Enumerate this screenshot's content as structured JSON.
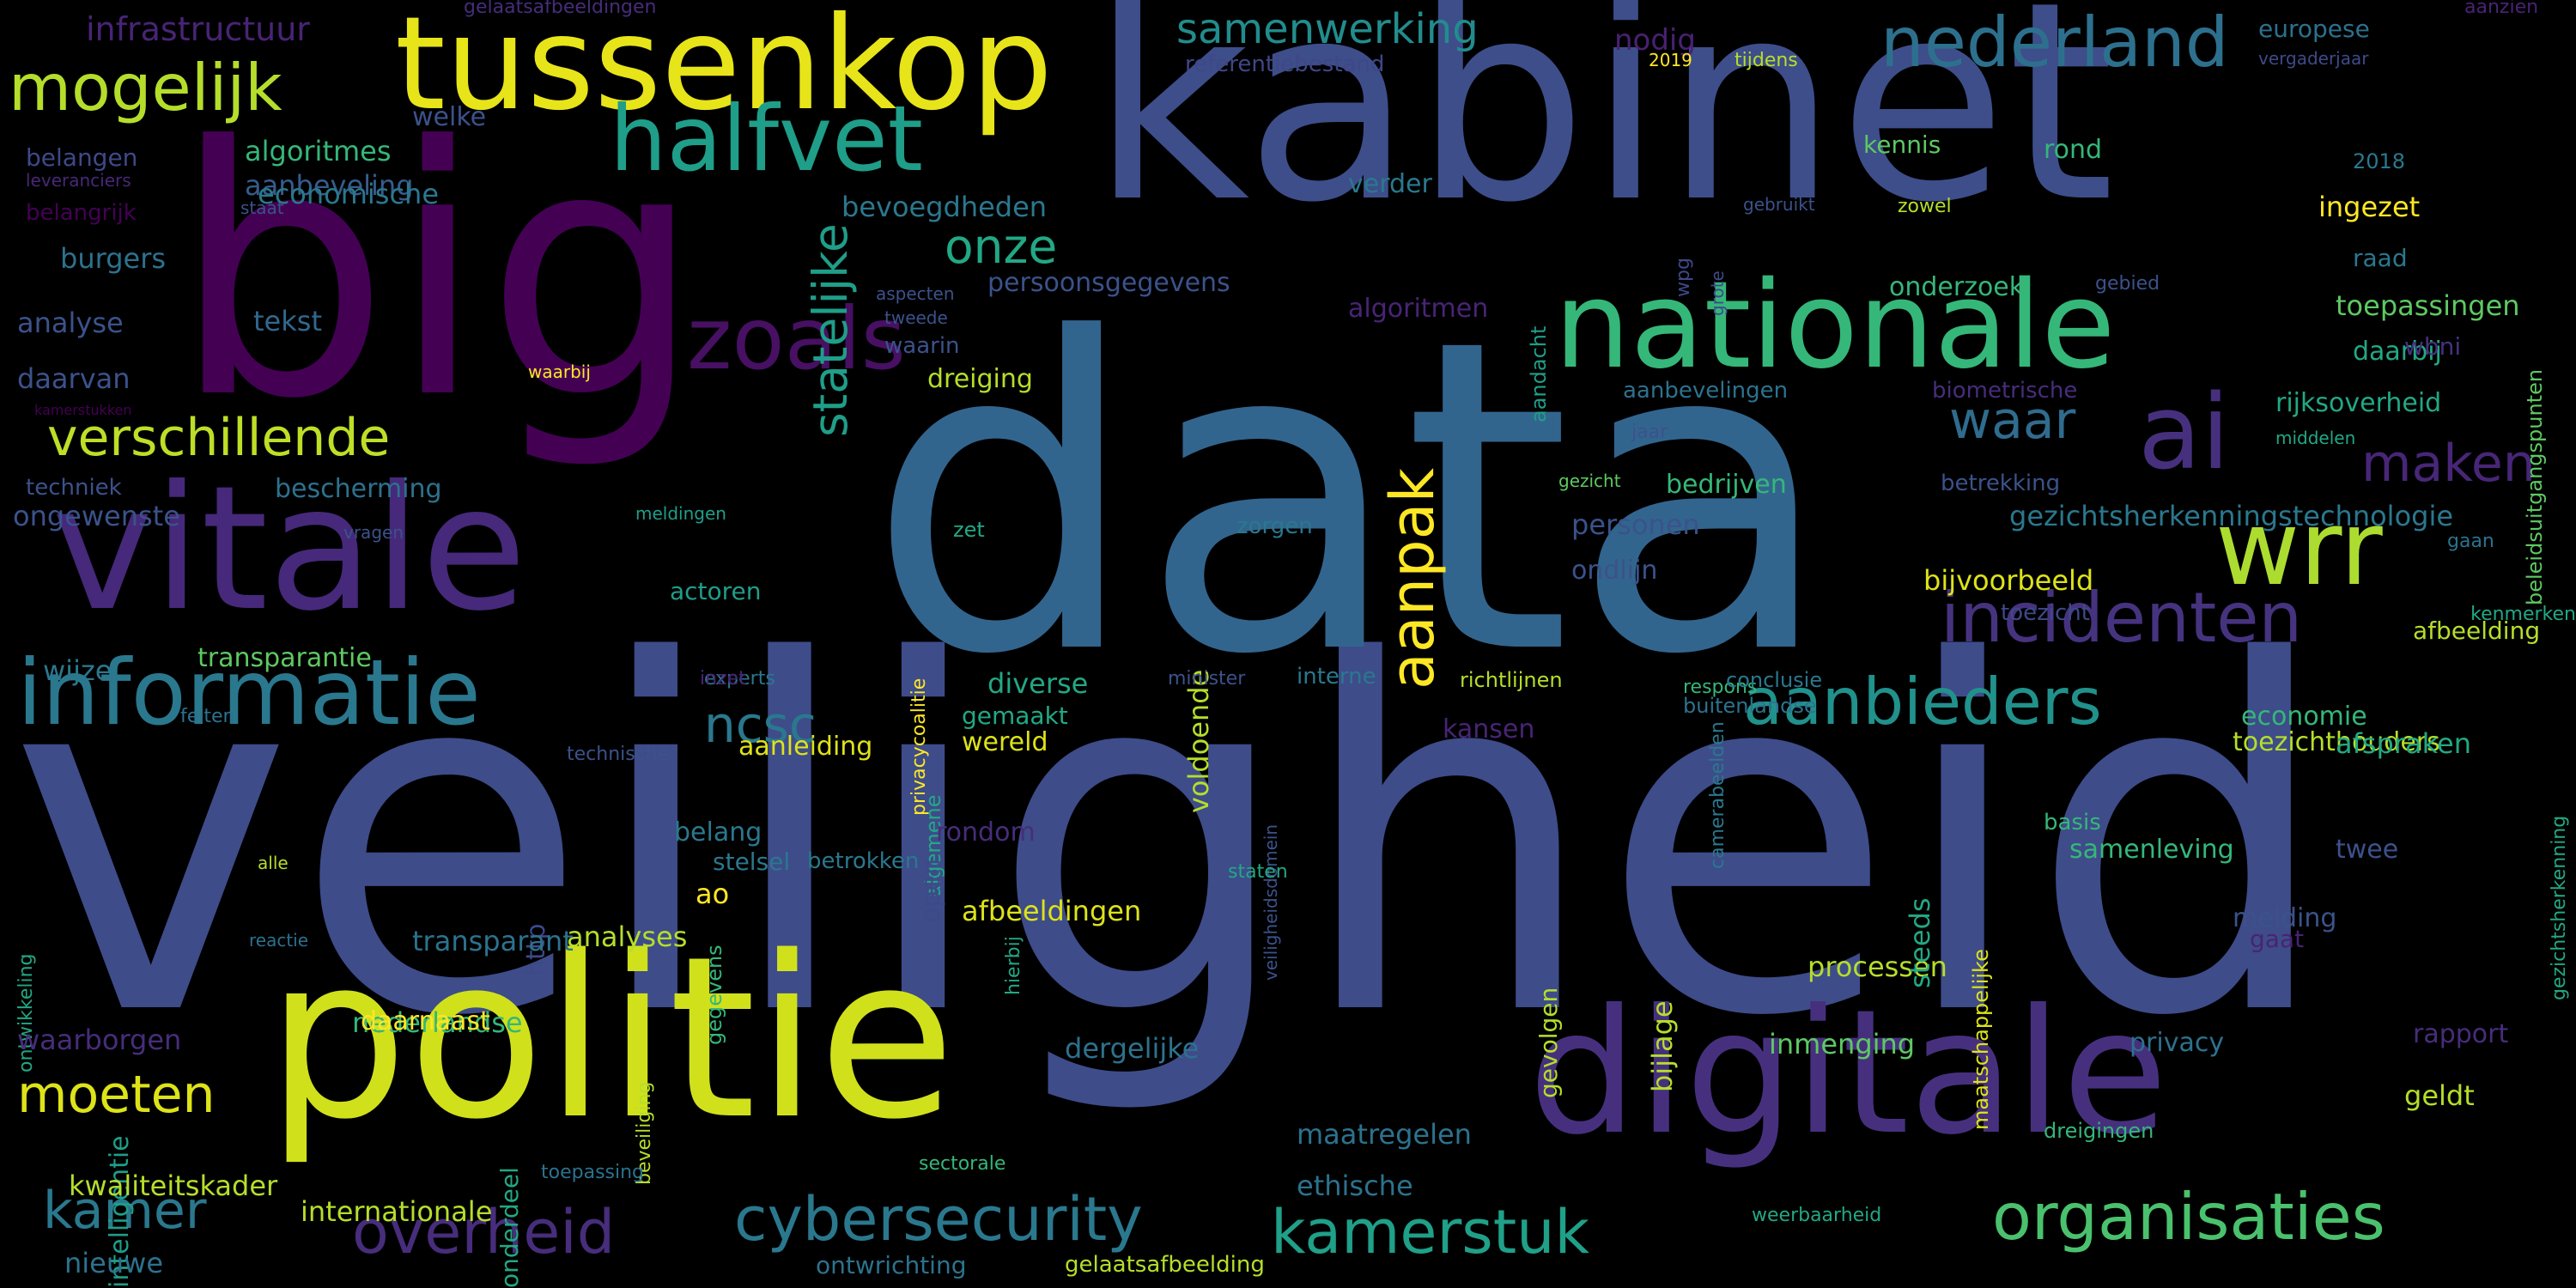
{
  "words": [
    {
      "text": "veiligheid",
      "color": "#3e4c8a",
      "vertical": false
    },
    {
      "text": "data",
      "color": "#32658e",
      "vertical": false
    },
    {
      "text": "kabinet",
      "color": "#3d4e8a",
      "vertical": false
    },
    {
      "text": "big",
      "color": "#440154",
      "vertical": false
    },
    {
      "text": "politie",
      "color": "#d0e11c",
      "vertical": false
    },
    {
      "text": "digitale",
      "color": "#46307e",
      "vertical": false
    },
    {
      "text": "vitale",
      "color": "#46297a",
      "vertical": false
    },
    {
      "text": "tussenkop",
      "color": "#e7e419",
      "vertical": false
    },
    {
      "text": "nationale",
      "color": "#35b779",
      "vertical": false
    },
    {
      "text": "informatie",
      "color": "#2a788e",
      "vertical": false
    },
    {
      "text": "halfvet",
      "color": "#1f9e89",
      "vertical": false
    },
    {
      "text": "wrr",
      "color": "#addc30",
      "vertical": false
    },
    {
      "text": "zoals",
      "color": "#471063",
      "vertical": false
    },
    {
      "text": "ai",
      "color": "#46307e",
      "vertical": false
    },
    {
      "text": "mogelijk",
      "color": "#b5de2b",
      "vertical": false
    },
    {
      "text": "nederland",
      "color": "#2d708e",
      "vertical": false
    },
    {
      "text": "incidenten",
      "color": "#46337f",
      "vertical": false
    },
    {
      "text": "aanbieders",
      "color": "#21918c",
      "vertical": false
    },
    {
      "text": "organisaties",
      "color": "#4ac16d",
      "vertical": false
    },
    {
      "text": "kamerstuk",
      "color": "#1fa088",
      "vertical": false
    },
    {
      "text": "overheid",
      "color": "#472d7b",
      "vertical": false
    },
    {
      "text": "cybersecurity",
      "color": "#2a788e",
      "vertical": false
    },
    {
      "text": "aanpak",
      "color": "#fde725",
      "vertical": true
    },
    {
      "text": "statelijke",
      "color": "#1f9e89",
      "vertical": true
    },
    {
      "text": "verschillende",
      "color": "#bddf26",
      "vertical": false
    },
    {
      "text": "onze",
      "color": "#22a884",
      "vertical": false
    },
    {
      "text": "waar",
      "color": "#2f6c8e",
      "vertical": false
    },
    {
      "text": "maken",
      "color": "#482677",
      "vertical": false
    },
    {
      "text": "ncsc",
      "color": "#2a788e",
      "vertical": false
    },
    {
      "text": "moeten",
      "color": "#dde318",
      "vertical": false
    },
    {
      "text": "kamer",
      "color": "#2a788e",
      "vertical": false
    },
    {
      "text": "samenwerking",
      "color": "#228c8d",
      "vertical": false
    },
    {
      "text": "infrastructuur",
      "color": "#482475",
      "vertical": false
    },
    {
      "text": "gelaatsafbeeldingen",
      "color": "#472c7a",
      "vertical": false
    },
    {
      "text": "referentiebestand",
      "color": "#3f4788",
      "vertical": false
    },
    {
      "text": "nodig",
      "color": "#482173",
      "vertical": false
    },
    {
      "text": "europese",
      "color": "#2c718e",
      "vertical": false
    },
    {
      "text": "vergaderjaar",
      "color": "#3e4a89",
      "vertical": false
    },
    {
      "text": "aanzien",
      "color": "#482374",
      "vertical": false
    },
    {
      "text": "2019",
      "color": "#fde725",
      "vertical": false
    },
    {
      "text": "tijdens",
      "color": "#b8de29",
      "vertical": false
    },
    {
      "text": "welke",
      "color": "#3b528b",
      "vertical": false
    },
    {
      "text": "algoritmes",
      "color": "#35b779",
      "vertical": false
    },
    {
      "text": "aanbeveling",
      "color": "#365c8d",
      "vertical": false
    },
    {
      "text": "belangen",
      "color": "#3e4989",
      "vertical": false
    },
    {
      "text": "leveranciers",
      "color": "#482878",
      "vertical": false
    },
    {
      "text": "belangrijk",
      "color": "#440154",
      "vertical": false
    },
    {
      "text": "staat",
      "color": "#3b528b",
      "vertical": false
    },
    {
      "text": "burgers",
      "color": "#2c728e",
      "vertical": false
    },
    {
      "text": "analyse",
      "color": "#3b528b",
      "vertical": false
    },
    {
      "text": "tekst",
      "color": "#31688e",
      "vertical": false
    },
    {
      "text": "daarvan",
      "color": "#3b528b",
      "vertical": false
    },
    {
      "text": "kamerstukken",
      "color": "#440154",
      "vertical": false
    },
    {
      "text": "techniek",
      "color": "#3b528b",
      "vertical": false
    },
    {
      "text": "ongewenste",
      "color": "#3b528b",
      "vertical": false
    },
    {
      "text": "bescherming",
      "color": "#2c728e",
      "vertical": false
    },
    {
      "text": "vragen",
      "color": "#3b528b",
      "vertical": false
    },
    {
      "text": "meldingen",
      "color": "#1f9e89",
      "vertical": false
    },
    {
      "text": "wijze",
      "color": "#2a788e",
      "vertical": false
    },
    {
      "text": "transparantie",
      "color": "#5ec962",
      "vertical": false
    },
    {
      "text": "experts",
      "color": "#2a788e",
      "vertical": false
    },
    {
      "text": "feiten",
      "color": "#2c728e",
      "vertical": false
    },
    {
      "text": "technische",
      "color": "#3b528b",
      "vertical": false
    },
    {
      "text": "economische",
      "color": "#2a788e",
      "vertical": false
    },
    {
      "text": "onderdeel",
      "color": "#22a884",
      "vertical": true
    },
    {
      "text": "verder",
      "color": "#2a788e",
      "vertical": false
    },
    {
      "text": "bevoegdheden",
      "color": "#2a788e",
      "vertical": false
    },
    {
      "text": "persoonsgegevens",
      "color": "#3b528b",
      "vertical": false
    },
    {
      "text": "aspecten",
      "color": "#3b528b",
      "vertical": false
    },
    {
      "text": "tweede",
      "color": "#3b528b",
      "vertical": false
    },
    {
      "text": "waarin",
      "color": "#3b528b",
      "vertical": false
    },
    {
      "text": "waarbij",
      "color": "#fde725",
      "vertical": false
    },
    {
      "text": "dreiging",
      "color": "#b5de2b",
      "vertical": false
    },
    {
      "text": "algoritmen",
      "color": "#482475",
      "vertical": false
    },
    {
      "text": "aandacht",
      "color": "#1f9e89",
      "vertical": true
    },
    {
      "text": "kennis",
      "color": "#5ec962",
      "vertical": false
    },
    {
      "text": "rond",
      "color": "#35b779",
      "vertical": false
    },
    {
      "text": "2018",
      "color": "#2a788e",
      "vertical": false
    },
    {
      "text": "ingezet",
      "color": "#fde725",
      "vertical": false
    },
    {
      "text": "gebruikt",
      "color": "#3b528b",
      "vertical": false
    },
    {
      "text": "zowel",
      "color": "#b5de2b",
      "vertical": false
    },
    {
      "text": "wpg",
      "color": "#3e4989",
      "vertical": true
    },
    {
      "text": "grote",
      "color": "#3e4989",
      "vertical": true
    },
    {
      "text": "raad",
      "color": "#2a788e",
      "vertical": false
    },
    {
      "text": "onderzoek",
      "color": "#35b779",
      "vertical": false
    },
    {
      "text": "gebied",
      "color": "#3b528b",
      "vertical": false
    },
    {
      "text": "toepassingen",
      "color": "#5ec962",
      "vertical": false
    },
    {
      "text": "beleidsuitgangspunten",
      "color": "#5ec962",
      "vertical": true
    },
    {
      "text": "daarbij",
      "color": "#22a884",
      "vertical": false
    },
    {
      "text": "wbni",
      "color": "#46307e",
      "vertical": false
    },
    {
      "text": "aanbevelingen",
      "color": "#2c728e",
      "vertical": false
    },
    {
      "text": "biometrische",
      "color": "#472d7b",
      "vertical": false
    },
    {
      "text": "rijksoverheid",
      "color": "#22a884",
      "vertical": false
    },
    {
      "text": "jaar",
      "color": "#3b528b",
      "vertical": false
    },
    {
      "text": "middelen",
      "color": "#22a884",
      "vertical": false
    },
    {
      "text": "gezicht",
      "color": "#5ec962",
      "vertical": false
    },
    {
      "text": "bedrijven",
      "color": "#35b779",
      "vertical": false
    },
    {
      "text": "betrekking",
      "color": "#3b528b",
      "vertical": false
    },
    {
      "text": "gezichtsherkenningstechnologie",
      "color": "#2a788e",
      "vertical": false
    },
    {
      "text": "gaan",
      "color": "#2c728e",
      "vertical": false
    },
    {
      "text": "personen",
      "color": "#3b528b",
      "vertical": false
    },
    {
      "text": "zorgen",
      "color": "#2a788e",
      "vertical": false
    },
    {
      "text": "zet",
      "color": "#22a884",
      "vertical": false
    },
    {
      "text": "voldoende",
      "color": "#b5de2b",
      "vertical": true
    },
    {
      "text": "privacycoalitie",
      "color": "#fde725",
      "vertical": true
    },
    {
      "text": "ondlijn",
      "color": "#3b528b",
      "vertical": false
    },
    {
      "text": "bijvoorbeeld",
      "color": "#dde318",
      "vertical": false
    },
    {
      "text": "toezicht",
      "color": "#3e4989",
      "vertical": false
    },
    {
      "text": "kenmerken",
      "color": "#22a884",
      "vertical": false
    },
    {
      "text": "gezichtsherkenning",
      "color": "#22a884",
      "vertical": true
    },
    {
      "text": "afbeelding",
      "color": "#b5de2b",
      "vertical": false
    },
    {
      "text": "camerabeelden",
      "color": "#2a788e",
      "vertical": true
    },
    {
      "text": "actoren",
      "color": "#1f9e89",
      "vertical": false
    },
    {
      "text": "inzet",
      "color": "#482475",
      "vertical": false
    },
    {
      "text": "diverse",
      "color": "#22a884",
      "vertical": false
    },
    {
      "text": "minister",
      "color": "#3b528b",
      "vertical": false
    },
    {
      "text": "richtlijnen",
      "color": "#b5de2b",
      "vertical": false
    },
    {
      "text": "respons",
      "color": "#35b779",
      "vertical": false
    },
    {
      "text": "conclusie",
      "color": "#2a788e",
      "vertical": false
    },
    {
      "text": "veiligheidsdomein",
      "color": "#3b528b",
      "vertical": true
    },
    {
      "text": "gemaakt",
      "color": "#22a884",
      "vertical": false
    },
    {
      "text": "interne",
      "color": "#2a788e",
      "vertical": false
    },
    {
      "text": "kansen",
      "color": "#482475",
      "vertical": false
    },
    {
      "text": "buitenlandse",
      "color": "#2c728e",
      "vertical": false
    },
    {
      "text": "economie",
      "color": "#35b779",
      "vertical": false
    },
    {
      "text": "toezichthouders",
      "color": "#b5de2b",
      "vertical": false
    },
    {
      "text": "afspraken",
      "color": "#22a884",
      "vertical": false
    },
    {
      "text": "wereld",
      "color": "#dde318",
      "vertical": false
    },
    {
      "text": "aanleiding",
      "color": "#dde318",
      "vertical": false
    },
    {
      "text": "algemene",
      "color": "#22a884",
      "vertical": true
    },
    {
      "text": "rondom",
      "color": "#472d7b",
      "vertical": false
    },
    {
      "text": "staten",
      "color": "#22a884",
      "vertical": false
    },
    {
      "text": "basis",
      "color": "#35b779",
      "vertical": false
    },
    {
      "text": "samenleving",
      "color": "#35b779",
      "vertical": false
    },
    {
      "text": "twee",
      "color": "#3b528b",
      "vertical": false
    },
    {
      "text": "belang",
      "color": "#2a788e",
      "vertical": false
    },
    {
      "text": "stelsel",
      "color": "#2a788e",
      "vertical": false
    },
    {
      "text": "betrokken",
      "color": "#2a788e",
      "vertical": false
    },
    {
      "text": "open",
      "color": "#3e4989",
      "vertical": true
    },
    {
      "text": "ao",
      "color": "#fde725",
      "vertical": false
    },
    {
      "text": "http",
      "color": "#3e4989",
      "vertical": true
    },
    {
      "text": "alle",
      "color": "#b5de2b",
      "vertical": false
    },
    {
      "text": "reactie",
      "color": "#2c728e",
      "vertical": false
    },
    {
      "text": "analyses",
      "color": "#b5de2b",
      "vertical": false
    },
    {
      "text": "transparant",
      "color": "#2c728e",
      "vertical": false
    },
    {
      "text": "afbeeldingen",
      "color": "#dde318",
      "vertical": false
    },
    {
      "text": "hierbij",
      "color": "#22a884",
      "vertical": true
    },
    {
      "text": "gegevens",
      "color": "#35b779",
      "vertical": true
    },
    {
      "text": "gevolgen",
      "color": "#b5de2b",
      "vertical": true
    },
    {
      "text": "bijlage",
      "color": "#b5de2b",
      "vertical": true
    },
    {
      "text": "processen",
      "color": "#b5de2b",
      "vertical": false
    },
    {
      "text": "steeds",
      "color": "#22a884",
      "vertical": true
    },
    {
      "text": "melding",
      "color": "#3b528b",
      "vertical": false
    },
    {
      "text": "gaat",
      "color": "#482374",
      "vertical": false
    },
    {
      "text": "maatschappelijke",
      "color": "#dde318",
      "vertical": true
    },
    {
      "text": "ontwikkeling",
      "color": "#22a884",
      "vertical": true
    },
    {
      "text": "geldt",
      "color": "#b5de2b",
      "vertical": false
    },
    {
      "text": "dreigingen",
      "color": "#35b779",
      "vertical": false
    },
    {
      "text": "nederlandse",
      "color": "#35b779",
      "vertical": false
    },
    {
      "text": "waarborgen",
      "color": "#472d7b",
      "vertical": false
    },
    {
      "text": "daarnaast",
      "color": "#fde725",
      "vertical": false
    },
    {
      "text": "dergelijke",
      "color": "#2c728e",
      "vertical": false
    },
    {
      "text": "inmenging",
      "color": "#5ec962",
      "vertical": false
    },
    {
      "text": "privacy",
      "color": "#2c728e",
      "vertical": false
    },
    {
      "text": "rapport",
      "color": "#472d7b",
      "vertical": false
    },
    {
      "text": "beveiliging",
      "color": "#b5de2b",
      "vertical": true
    },
    {
      "text": "intelligentie",
      "color": "#1f9e89",
      "vertical": true
    },
    {
      "text": "toepassing",
      "color": "#2c728e",
      "vertical": false
    },
    {
      "text": "sectorale",
      "color": "#35b779",
      "vertical": false
    },
    {
      "text": "maatregelen",
      "color": "#2c728e",
      "vertical": false
    },
    {
      "text": "kwaliteitskader",
      "color": "#b5de2b",
      "vertical": false
    },
    {
      "text": "ethische",
      "color": "#2c728e",
      "vertical": false
    },
    {
      "text": "internationale",
      "color": "#b5de2b",
      "vertical": false
    },
    {
      "text": "weerbaarheid",
      "color": "#22a884",
      "vertical": false
    },
    {
      "text": "nieuwe",
      "color": "#2c728e",
      "vertical": false
    },
    {
      "text": "ontwrichting",
      "color": "#2c728e",
      "vertical": false
    },
    {
      "text": "gelaatsafbeelding",
      "color": "#b5de2b",
      "vertical": false
    }
  ]
}
